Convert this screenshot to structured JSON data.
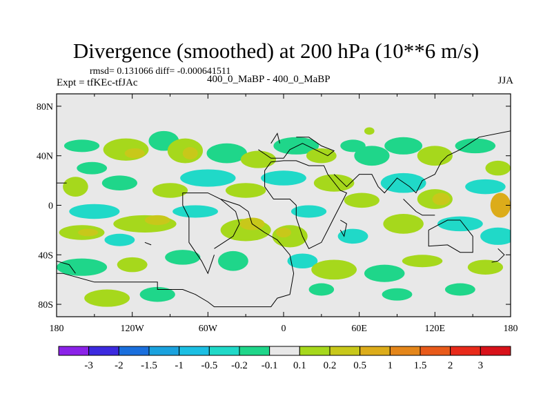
{
  "header": {
    "title": "Divergence (smoothed) at 200 hPa (10**6 m/s)",
    "stats": "rmsd= 0.131066 diff= -0.000641511",
    "experiment": "Expt = tfKEc-tfJAc",
    "center_label": "400_0_MaBP - 400_0_MaBP",
    "season": "JJA"
  },
  "chart_data": {
    "type": "heatmap",
    "title": "Divergence (smoothed) at 200 hPa (10**6 m/s)",
    "xlabel": "",
    "ylabel": "",
    "x_ticks": [
      "180",
      "120W",
      "60W",
      "0",
      "60E",
      "120E",
      "180"
    ],
    "x_tick_values": [
      -180,
      -120,
      -60,
      0,
      60,
      120,
      180
    ],
    "y_ticks": [
      "80N",
      "40N",
      "0",
      "40S",
      "80S"
    ],
    "y_tick_values": [
      80,
      40,
      0,
      -40,
      -80
    ],
    "xlim": [
      -180,
      180
    ],
    "ylim": [
      -90,
      90
    ],
    "background_color": "#e8e8e8",
    "colorbar": {
      "labels": [
        "-3",
        "-2",
        "-1.5",
        "-1",
        "-0.5",
        "-0.2",
        "-0.1",
        "0.1",
        "0.2",
        "0.5",
        "1",
        "1.5",
        "2",
        "3"
      ],
      "colors": [
        "#8b22e8",
        "#3c2adf",
        "#1a6fdd",
        "#1aa2de",
        "#1cbfe3",
        "#20d9c8",
        "#1fd68a",
        "#e8e8e8",
        "#a6d81c",
        "#c8c81a",
        "#dcac1a",
        "#e4861a",
        "#e85a1a",
        "#e82a1a",
        "#d8121a"
      ]
    },
    "blobs": [
      {
        "lon": -160,
        "lat": 48,
        "rx": 14,
        "ry": 5,
        "color": "#1fd68a"
      },
      {
        "lon": -152,
        "lat": 30,
        "rx": 12,
        "ry": 5,
        "color": "#1fd68a"
      },
      {
        "lon": -125,
        "lat": 45,
        "rx": 18,
        "ry": 9,
        "color": "#a6d81c"
      },
      {
        "lon": -118,
        "lat": 42,
        "rx": 8,
        "ry": 4,
        "color": "#c8c81a"
      },
      {
        "lon": -95,
        "lat": 52,
        "rx": 12,
        "ry": 8,
        "color": "#1fd68a"
      },
      {
        "lon": -78,
        "lat": 44,
        "rx": 14,
        "ry": 10,
        "color": "#a6d81c"
      },
      {
        "lon": -74,
        "lat": 42,
        "rx": 6,
        "ry": 5,
        "color": "#c8c81a"
      },
      {
        "lon": -45,
        "lat": 42,
        "rx": 16,
        "ry": 8,
        "color": "#1fd68a"
      },
      {
        "lon": -20,
        "lat": 37,
        "rx": 14,
        "ry": 7,
        "color": "#a6d81c"
      },
      {
        "lon": 10,
        "lat": 48,
        "rx": 18,
        "ry": 7,
        "color": "#1fd68a"
      },
      {
        "lon": 30,
        "lat": 40,
        "rx": 12,
        "ry": 6,
        "color": "#a6d81c"
      },
      {
        "lon": 55,
        "lat": 48,
        "rx": 10,
        "ry": 5,
        "color": "#1fd68a"
      },
      {
        "lon": 70,
        "lat": 40,
        "rx": 14,
        "ry": 8,
        "color": "#1fd68a"
      },
      {
        "lon": 95,
        "lat": 48,
        "rx": 15,
        "ry": 7,
        "color": "#1fd68a"
      },
      {
        "lon": 120,
        "lat": 40,
        "rx": 14,
        "ry": 8,
        "color": "#a6d81c"
      },
      {
        "lon": 152,
        "lat": 48,
        "rx": 16,
        "ry": 6,
        "color": "#1fd68a"
      },
      {
        "lon": 170,
        "lat": 30,
        "rx": 10,
        "ry": 6,
        "color": "#a6d81c"
      },
      {
        "lon": 68,
        "lat": 60,
        "rx": 4,
        "ry": 3,
        "color": "#a6d81c"
      },
      {
        "lon": -165,
        "lat": 15,
        "rx": 10,
        "ry": 8,
        "color": "#a6d81c"
      },
      {
        "lon": -130,
        "lat": 18,
        "rx": 14,
        "ry": 6,
        "color": "#1fd68a"
      },
      {
        "lon": -90,
        "lat": 12,
        "rx": 14,
        "ry": 6,
        "color": "#a6d81c"
      },
      {
        "lon": -60,
        "lat": 22,
        "rx": 22,
        "ry": 7,
        "color": "#20d9c8"
      },
      {
        "lon": -30,
        "lat": 12,
        "rx": 16,
        "ry": 6,
        "color": "#a6d81c"
      },
      {
        "lon": 0,
        "lat": 22,
        "rx": 18,
        "ry": 6,
        "color": "#20d9c8"
      },
      {
        "lon": 40,
        "lat": 18,
        "rx": 16,
        "ry": 7,
        "color": "#a6d81c"
      },
      {
        "lon": 62,
        "lat": 4,
        "rx": 14,
        "ry": 6,
        "color": "#a6d81c"
      },
      {
        "lon": 95,
        "lat": 18,
        "rx": 18,
        "ry": 8,
        "color": "#20d9c8"
      },
      {
        "lon": 120,
        "lat": 5,
        "rx": 14,
        "ry": 8,
        "color": "#a6d81c"
      },
      {
        "lon": 125,
        "lat": 5,
        "rx": 7,
        "ry": 5,
        "color": "#c8c81a"
      },
      {
        "lon": 160,
        "lat": 15,
        "rx": 16,
        "ry": 6,
        "color": "#20d9c8"
      },
      {
        "lon": 172,
        "lat": 0,
        "rx": 8,
        "ry": 10,
        "color": "#dcac1a"
      },
      {
        "lon": -150,
        "lat": -5,
        "rx": 20,
        "ry": 6,
        "color": "#20d9c8"
      },
      {
        "lon": -110,
        "lat": -15,
        "rx": 25,
        "ry": 7,
        "color": "#a6d81c"
      },
      {
        "lon": -100,
        "lat": -12,
        "rx": 10,
        "ry": 4,
        "color": "#c8c81a"
      },
      {
        "lon": -70,
        "lat": -5,
        "rx": 18,
        "ry": 5,
        "color": "#20d9c8"
      },
      {
        "lon": -30,
        "lat": -20,
        "rx": 20,
        "ry": 9,
        "color": "#a6d81c"
      },
      {
        "lon": -25,
        "lat": -15,
        "rx": 10,
        "ry": 5,
        "color": "#c8c81a"
      },
      {
        "lon": 5,
        "lat": -25,
        "rx": 14,
        "ry": 9,
        "color": "#a6d81c"
      },
      {
        "lon": 0,
        "lat": -22,
        "rx": 6,
        "ry": 4,
        "color": "#c8c81a"
      },
      {
        "lon": 20,
        "lat": -5,
        "rx": 14,
        "ry": 5,
        "color": "#20d9c8"
      },
      {
        "lon": 55,
        "lat": -25,
        "rx": 12,
        "ry": 6,
        "color": "#20d9c8"
      },
      {
        "lon": 95,
        "lat": -15,
        "rx": 16,
        "ry": 8,
        "color": "#a6d81c"
      },
      {
        "lon": 140,
        "lat": -15,
        "rx": 18,
        "ry": 6,
        "color": "#20d9c8"
      },
      {
        "lon": 170,
        "lat": -25,
        "rx": 14,
        "ry": 7,
        "color": "#20d9c8"
      },
      {
        "lon": -160,
        "lat": -22,
        "rx": 18,
        "ry": 6,
        "color": "#a6d81c"
      },
      {
        "lon": -155,
        "lat": -22,
        "rx": 8,
        "ry": 3,
        "color": "#c8c81a"
      },
      {
        "lon": -130,
        "lat": -28,
        "rx": 12,
        "ry": 5,
        "color": "#20d9c8"
      },
      {
        "lon": -160,
        "lat": -50,
        "rx": 20,
        "ry": 7,
        "color": "#1fd68a"
      },
      {
        "lon": -120,
        "lat": -48,
        "rx": 12,
        "ry": 6,
        "color": "#a6d81c"
      },
      {
        "lon": -80,
        "lat": -42,
        "rx": 14,
        "ry": 6,
        "color": "#1fd68a"
      },
      {
        "lon": -40,
        "lat": -45,
        "rx": 12,
        "ry": 8,
        "color": "#1fd68a"
      },
      {
        "lon": 15,
        "lat": -45,
        "rx": 12,
        "ry": 6,
        "color": "#20d9c8"
      },
      {
        "lon": 40,
        "lat": -52,
        "rx": 18,
        "ry": 8,
        "color": "#a6d81c"
      },
      {
        "lon": 80,
        "lat": -55,
        "rx": 16,
        "ry": 7,
        "color": "#1fd68a"
      },
      {
        "lon": 110,
        "lat": -45,
        "rx": 16,
        "ry": 5,
        "color": "#a6d81c"
      },
      {
        "lon": 160,
        "lat": -50,
        "rx": 14,
        "ry": 6,
        "color": "#a6d81c"
      },
      {
        "lon": -140,
        "lat": -75,
        "rx": 18,
        "ry": 7,
        "color": "#a6d81c"
      },
      {
        "lon": -100,
        "lat": -72,
        "rx": 14,
        "ry": 6,
        "color": "#1fd68a"
      },
      {
        "lon": 30,
        "lat": -68,
        "rx": 10,
        "ry": 5,
        "color": "#1fd68a"
      },
      {
        "lon": 90,
        "lat": -72,
        "rx": 12,
        "ry": 5,
        "color": "#1fd68a"
      },
      {
        "lon": 140,
        "lat": -68,
        "rx": 12,
        "ry": 5,
        "color": "#1fd68a"
      }
    ],
    "coastlines": [
      [
        [
          -180,
          -55
        ],
        [
          -175,
          -55
        ],
        [
          -150,
          -62
        ],
        [
          -100,
          -62
        ],
        [
          -100,
          -68
        ],
        [
          -80,
          -68
        ],
        [
          -70,
          -72
        ],
        [
          -60,
          -78
        ],
        [
          -55,
          -82
        ],
        [
          -10,
          -82
        ],
        [
          -5,
          -75
        ],
        [
          5,
          -72
        ],
        [
          8,
          -55
        ],
        [
          5,
          -40
        ],
        [
          -5,
          -28
        ],
        [
          -15,
          -22
        ],
        [
          -25,
          -15
        ],
        [
          -28,
          -5
        ],
        [
          -35,
          0
        ],
        [
          -50,
          5
        ]
      ],
      [
        [
          -180,
          -45
        ],
        [
          -170,
          -48
        ],
        [
          -165,
          -55
        ]
      ],
      [
        [
          -55,
          -35
        ],
        [
          -40,
          -25
        ],
        [
          -35,
          -15
        ],
        [
          -38,
          -5
        ],
        [
          -50,
          5
        ],
        [
          -60,
          10
        ],
        [
          -80,
          10
        ],
        [
          -80,
          0
        ],
        [
          -75,
          -10
        ],
        [
          -75,
          -30
        ],
        [
          -65,
          -45
        ],
        [
          -60,
          -55
        ],
        [
          -55,
          -40
        ]
      ],
      [
        [
          -180,
          18
        ],
        [
          -172,
          18
        ]
      ],
      [
        [
          -110,
          -30
        ],
        [
          -105,
          -32
        ]
      ],
      [
        [
          -20,
          45
        ],
        [
          -10,
          38
        ],
        [
          0,
          38
        ],
        [
          5,
          45
        ],
        [
          15,
          50
        ],
        [
          25,
          45
        ],
        [
          35,
          40
        ],
        [
          40,
          44
        ],
        [
          30,
          48
        ],
        [
          20,
          55
        ],
        [
          10,
          55
        ]
      ],
      [
        [
          -10,
          35
        ],
        [
          -15,
          28
        ],
        [
          -15,
          15
        ],
        [
          -8,
          5
        ],
        [
          5,
          5
        ],
        [
          10,
          0
        ],
        [
          10,
          -10
        ],
        [
          15,
          -25
        ],
        [
          20,
          -35
        ],
        [
          30,
          -30
        ],
        [
          35,
          -20
        ],
        [
          40,
          -10
        ],
        [
          45,
          0
        ],
        [
          50,
          10
        ],
        [
          45,
          12
        ],
        [
          35,
          25
        ],
        [
          32,
          32
        ],
        [
          20,
          32
        ],
        [
          10,
          36
        ],
        [
          0,
          36
        ],
        [
          -10,
          35
        ]
      ],
      [
        [
          40,
          25
        ],
        [
          50,
          15
        ],
        [
          55,
          20
        ],
        [
          60,
          25
        ],
        [
          70,
          25
        ],
        [
          75,
          15
        ],
        [
          80,
          10
        ],
        [
          90,
          22
        ],
        [
          100,
          15
        ],
        [
          105,
          10
        ],
        [
          110,
          20
        ],
        [
          120,
          25
        ],
        [
          125,
          35
        ],
        [
          130,
          40
        ],
        [
          140,
          45
        ],
        [
          155,
          55
        ],
        [
          180,
          60
        ]
      ],
      [
        [
          45,
          -12
        ],
        [
          50,
          -15
        ],
        [
          48,
          -25
        ],
        [
          45,
          -20
        ]
      ],
      [
        [
          115,
          -20
        ],
        [
          130,
          -12
        ],
        [
          140,
          -12
        ],
        [
          150,
          -25
        ],
        [
          150,
          -38
        ],
        [
          140,
          -38
        ],
        [
          130,
          -32
        ],
        [
          115,
          -33
        ],
        [
          115,
          -20
        ]
      ],
      [
        [
          170,
          -35
        ],
        [
          175,
          -40
        ],
        [
          170,
          -45
        ],
        [
          165,
          -46
        ]
      ],
      [
        [
          95,
          5
        ],
        [
          105,
          -5
        ],
        [
          110,
          -8
        ],
        [
          120,
          -8
        ]
      ],
      [
        [
          -10,
          50
        ],
        [
          -5,
          58
        ],
        [
          -3,
          50
        ]
      ]
    ]
  }
}
